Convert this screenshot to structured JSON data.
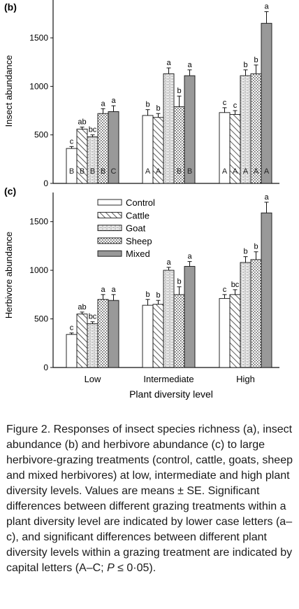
{
  "chart_data": [
    {
      "type": "bar",
      "panel_label": "(b)",
      "ylabel": "Insect abundance",
      "ylim": [
        0,
        1800
      ],
      "yticks": [
        0,
        500,
        1000,
        1500
      ],
      "categories": [
        "Low",
        "Intermediate",
        "High"
      ],
      "series": [
        {
          "name": "Control",
          "pattern": "plain",
          "values": [
            360,
            700,
            730
          ],
          "errors": [
            20,
            60,
            50
          ],
          "lower_letters": [
            "c",
            "b",
            "c"
          ],
          "capital_letters": [
            "B",
            "A",
            "A"
          ]
        },
        {
          "name": "Cattle",
          "pattern": "hatch",
          "values": [
            560,
            680,
            710
          ],
          "errors": [
            20,
            40,
            40
          ],
          "lower_letters": [
            "ab",
            "b",
            "c"
          ],
          "capital_letters": [
            "B",
            "A",
            "A"
          ]
        },
        {
          "name": "Goat",
          "pattern": "brick",
          "values": [
            480,
            1130,
            1110
          ],
          "errors": [
            20,
            60,
            60
          ],
          "lower_letters": [
            "bc",
            "a",
            "b"
          ],
          "capital_letters": [
            "B",
            "",
            "A"
          ]
        },
        {
          "name": "Sheep",
          "pattern": "dots",
          "values": [
            720,
            790,
            1130
          ],
          "errors": [
            50,
            110,
            90
          ],
          "lower_letters": [
            "a",
            "b",
            "b"
          ],
          "capital_letters": [
            "B",
            "B",
            "A"
          ]
        },
        {
          "name": "Mixed",
          "pattern": "grey",
          "values": [
            740,
            1110,
            1650
          ],
          "errors": [
            60,
            60,
            120
          ],
          "lower_letters": [
            "a",
            "a",
            "a"
          ],
          "capital_letters": [
            "C",
            "B",
            "A"
          ]
        }
      ]
    },
    {
      "type": "bar",
      "panel_label": "(c)",
      "ylabel": "Herbivore abundance",
      "xlabel": "Plant diversity level",
      "ylim": [
        0,
        1800
      ],
      "yticks": [
        0,
        500,
        1000,
        1500
      ],
      "categories": [
        "Low",
        "Intermediate",
        "High"
      ],
      "series": [
        {
          "name": "Control",
          "pattern": "plain",
          "values": [
            340,
            640,
            710
          ],
          "errors": [
            15,
            60,
            40
          ],
          "lower_letters": [
            "c",
            "b",
            "c"
          ]
        },
        {
          "name": "Cattle",
          "pattern": "hatch",
          "values": [
            550,
            650,
            750
          ],
          "errors": [
            20,
            40,
            50
          ],
          "lower_letters": [
            "ab",
            "b",
            "bc"
          ]
        },
        {
          "name": "Goat",
          "pattern": "brick",
          "values": [
            450,
            1000,
            1080
          ],
          "errors": [
            20,
            30,
            60
          ],
          "lower_letters": [
            "bc",
            "a",
            "b"
          ]
        },
        {
          "name": "Sheep",
          "pattern": "dots",
          "values": [
            700,
            750,
            1110
          ],
          "errors": [
            50,
            80,
            80
          ],
          "lower_letters": [
            "a",
            "b",
            "b"
          ]
        },
        {
          "name": "Mixed",
          "pattern": "grey",
          "values": [
            690,
            1040,
            1590
          ],
          "errors": [
            60,
            50,
            110
          ],
          "lower_letters": [
            "a",
            "a",
            "a"
          ]
        }
      ],
      "legend": {
        "placement": "top-left",
        "entries": [
          "Control",
          "Cattle",
          "Goat",
          "Sheep",
          "Mixed"
        ]
      }
    }
  ],
  "colors": {
    "mixed_fill": "#999999",
    "axis": "#111111",
    "pattern_line": "#333333"
  },
  "caption": {
    "text": "Figure 2. Responses of insect species richness (a), insect abundance (b) and herbivore abundance (c) to large herbivore-grazing treatments (control, cattle, goats, sheep and mixed herbivores) at low, intermediate and high plant diversity levels. Values are means ± SE. Significant differences between different grazing treatments within a plant diversity level are indicated by lower case letters (a–c), and significant differences between different plant diversity levels within a grazing treatment are indicated by capital letters (A–C; ",
    "p_symbol": "P",
    "tail": " ≤ 0·05)."
  }
}
